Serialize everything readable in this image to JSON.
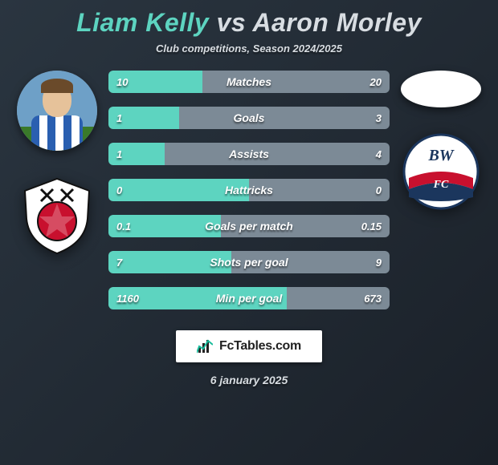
{
  "title": {
    "player1": "Liam Kelly",
    "vs": "vs",
    "player2": "Aaron Morley",
    "player1_color": "#5dd4c0",
    "vs_color": "#d8dde2",
    "player2_color": "#d8dde2",
    "fontsize": 32
  },
  "subtitle": "Club competitions, Season 2024/2025",
  "colors": {
    "bg_gradient_from": "#2a3540",
    "bg_gradient_to": "#1a2028",
    "bar_left": "#5dd4c0",
    "bar_right": "#7c8a96",
    "text_light": "#d8dde2",
    "white": "#ffffff"
  },
  "bar_style": {
    "height": 28,
    "gap": 17,
    "border_radius": 6,
    "label_fontsize": 14,
    "value_fontsize": 13
  },
  "stats": [
    {
      "label": "Matches",
      "left_val": "10",
      "right_val": "20",
      "left_pct": 33.3
    },
    {
      "label": "Goals",
      "left_val": "1",
      "right_val": "3",
      "left_pct": 25.0
    },
    {
      "label": "Assists",
      "left_val": "1",
      "right_val": "4",
      "left_pct": 20.0
    },
    {
      "label": "Hattricks",
      "left_val": "0",
      "right_val": "0",
      "left_pct": 50.0
    },
    {
      "label": "Goals per match",
      "left_val": "0.1",
      "right_val": "0.15",
      "left_pct": 40.0
    },
    {
      "label": "Shots per goal",
      "left_val": "7",
      "right_val": "9",
      "left_pct": 43.8
    },
    {
      "label": "Min per goal",
      "left_val": "1160",
      "right_val": "673",
      "left_pct": 63.3
    }
  ],
  "left_side": {
    "player_avatar_name": "liam-kelly-avatar",
    "club_name": "rotherham-badge",
    "club_colors": {
      "shield": "#ffffff",
      "ball": "#c8102e",
      "accent": "#000000"
    }
  },
  "right_side": {
    "player_avatar_name": "aaron-morley-avatar",
    "club_name": "bolton-badge",
    "club_colors": {
      "outer": "#ffffff",
      "ribbon": "#c8102e",
      "inner": "#1b365d"
    }
  },
  "brand": {
    "text": "FcTables.com",
    "box_bg": "#ffffff",
    "text_color": "#222222"
  },
  "date": "6 january 2025"
}
